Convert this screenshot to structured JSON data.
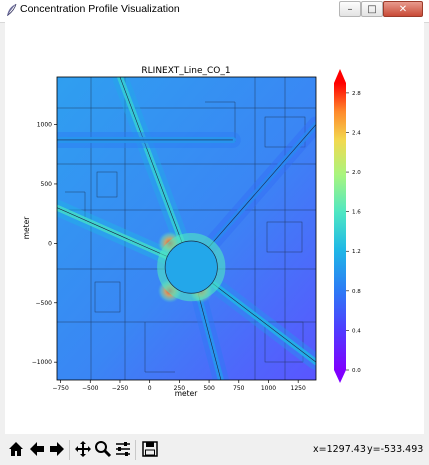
{
  "window": {
    "title": "Concentration Profile Visualization",
    "buttons": [
      "minimize",
      "maximize",
      "close"
    ],
    "min_glyph": "–",
    "max_glyph": "□",
    "close_glyph": "✕"
  },
  "toolbar": {
    "tools": [
      "home-icon",
      "back-icon",
      "forward-icon",
      "pan-icon",
      "zoom-icon",
      "configure-subplots-icon",
      "save-icon"
    ],
    "x_readout": "x=1297.43",
    "y_readout": "y=-533.493"
  },
  "colors": {
    "background_field": "#2f7df5",
    "road_line": "#1a2a44",
    "hotspot": "#f0392b"
  },
  "chart_data": {
    "type": "heatmap",
    "title": "RLINEXT_Line_CO_1",
    "xlabel": "meter",
    "ylabel": "meter",
    "xlim": [
      -780,
      1400
    ],
    "ylim": [
      -1150,
      1400
    ],
    "x_ticks": [
      -750,
      -500,
      -250,
      0,
      250,
      500,
      750,
      1000,
      1250
    ],
    "y_ticks": [
      -1000,
      -500,
      0,
      500,
      1000
    ],
    "colorbar": {
      "colormap": "rainbow",
      "min": 0.0,
      "max": 2.9,
      "ticks": [
        0.0,
        0.4,
        0.8,
        1.2,
        1.6,
        2.0,
        2.4,
        2.8
      ],
      "tick_labels": [
        "0.0",
        "0.4",
        "0.8",
        "1.2",
        "1.6",
        "2.0",
        "2.4",
        "2.8"
      ]
    },
    "roundabout": {
      "center": [
        350,
        -200
      ],
      "radius": 220
    },
    "roads": [
      {
        "name": "northwest-spoke",
        "from": [
          -250,
          1400
        ],
        "to": [
          350,
          -200
        ],
        "level": 1.4
      },
      {
        "name": "southeast-spoke",
        "from": [
          350,
          -200
        ],
        "to": [
          1400,
          -1000
        ],
        "level": 1.2
      },
      {
        "name": "west-spoke",
        "from": [
          -780,
          300
        ],
        "to": [
          350,
          -200
        ],
        "level": 1.5
      },
      {
        "name": "northeast-spoke",
        "from": [
          350,
          -200
        ],
        "to": [
          1400,
          1000
        ],
        "level": 0.9
      },
      {
        "name": "south-spoke",
        "from": [
          350,
          -200
        ],
        "to": [
          600,
          -1150
        ],
        "level": 1.0
      },
      {
        "name": "horizontal-upper",
        "from": [
          -780,
          870
        ],
        "to": [
          700,
          870
        ],
        "level": 1.0
      }
    ],
    "hotspots": [
      {
        "x": 170,
        "y": 0,
        "level": 2.1
      },
      {
        "x": 170,
        "y": -400,
        "level": 2.2
      },
      {
        "x": 430,
        "y": -400,
        "level": 1.9
      }
    ]
  }
}
